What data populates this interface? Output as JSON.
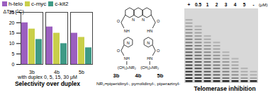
{
  "chart_data": {
    "type": "bar",
    "title": "Selectivity over duplex",
    "y_label": "ΔTm (°C)",
    "annotation": "with duplex 0, 5, 15, 30 μM",
    "categories": [
      "3b",
      "4b",
      "5b"
    ],
    "series": [
      {
        "name": "h-telo",
        "color": "#9b5fc0",
        "values": [
          20,
          18,
          15
        ]
      },
      {
        "name": "c-myc",
        "color": "#c9cf4a",
        "values": [
          17,
          15,
          13
        ]
      },
      {
        "name": "c-kit2",
        "color": "#3f9a86",
        "values": [
          12,
          10,
          8
        ]
      }
    ],
    "ylim": [
      0,
      25
    ],
    "yticks": [
      0,
      5,
      10,
      15,
      20,
      25
    ],
    "legend": "top"
  },
  "structure": {
    "compound_labels": [
      "3b",
      "4b",
      "5b"
    ],
    "substituent": "NR₂=piperidinyl-, pyrrolidinyl-, piperazinyl-",
    "atoms": [
      "N",
      "N",
      "O",
      "O",
      "NH",
      "HN",
      "N",
      "N",
      "O",
      "O",
      "NH",
      "HN"
    ],
    "chain_labels": [
      "(CH₂)ₙNR₂",
      "(CH₂)ₙNR₂"
    ]
  },
  "gel": {
    "title": "Telomerase inhibition",
    "lanes": [
      "+",
      "0.5",
      "1",
      "2",
      "3",
      "4",
      "5",
      "-"
    ],
    "unit": "(μM)"
  }
}
